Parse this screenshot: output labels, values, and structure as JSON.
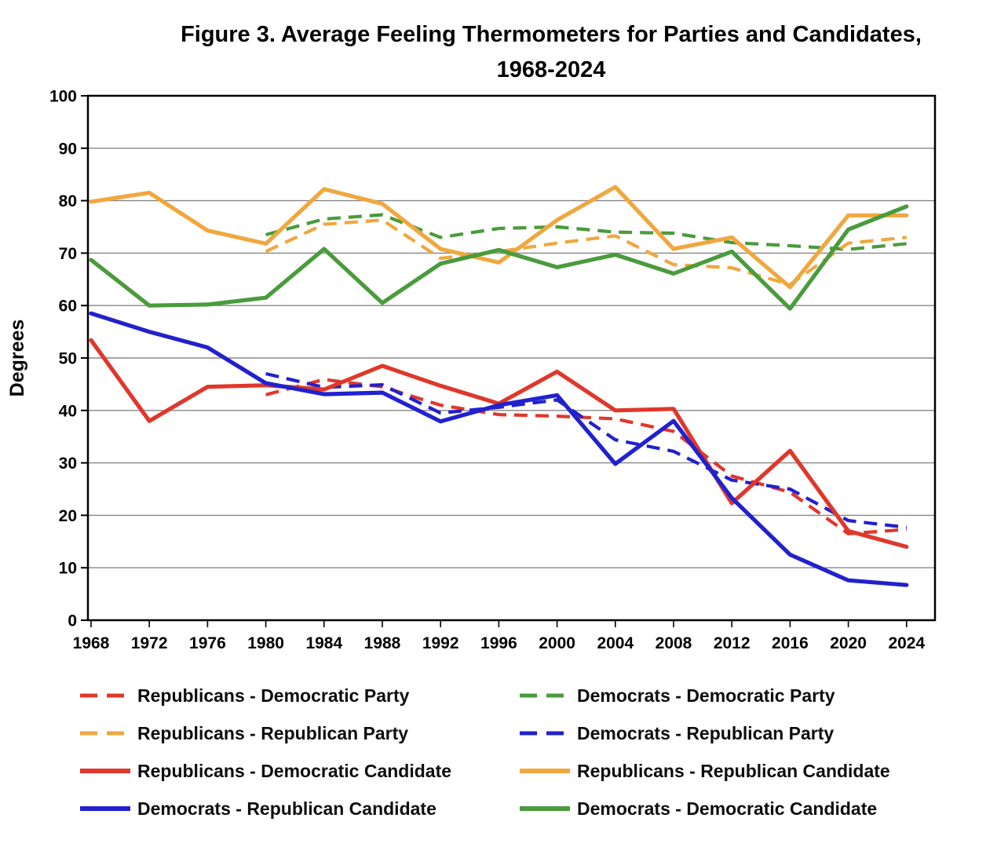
{
  "title": {
    "line1": "Figure 3.  Average Feeling Thermometers for Parties and Candidates,",
    "line2": "1968-2024"
  },
  "chart_data": {
    "type": "line",
    "title": "Figure 3. Average Feeling Thermometers for Parties and Candidates, 1968-2024",
    "xlabel": "",
    "ylabel": "Degrees",
    "ylim": [
      0,
      100
    ],
    "yticks": [
      0,
      10,
      20,
      30,
      40,
      50,
      60,
      70,
      80,
      90,
      100
    ],
    "grid": true,
    "legend_position": "bottom-two-columns",
    "categories": [
      "1968",
      "1972",
      "1976",
      "1980",
      "1984",
      "1988",
      "1992",
      "1996",
      "2000",
      "2004",
      "2008",
      "2012",
      "2016",
      "2020",
      "2024"
    ],
    "series": [
      {
        "name": "Republicans - Democratic Party",
        "color": "#E0372B",
        "dashed": true,
        "values": [
          null,
          null,
          null,
          43,
          45.9,
          44.5,
          41,
          39.2,
          38.9,
          38.4,
          36,
          27.5,
          24.4,
          16.5,
          17.3
        ]
      },
      {
        "name": "Democrats - Democratic Party",
        "color": "#4A9B3C",
        "dashed": true,
        "values": [
          null,
          null,
          null,
          73.5,
          76.5,
          77.3,
          73,
          74.7,
          75,
          74,
          73.8,
          72,
          71.4,
          70.7,
          71.8
        ]
      },
      {
        "name": "Republicans - Republican Party",
        "color": "#F0A73E",
        "dashed": true,
        "values": [
          null,
          null,
          null,
          70.3,
          75.5,
          76.3,
          69,
          70.3,
          71.9,
          73.3,
          67.8,
          67.2,
          64,
          71.9,
          73
        ]
      },
      {
        "name": "Democrats - Republican Party",
        "color": "#2121CE",
        "dashed": true,
        "values": [
          null,
          null,
          null,
          47,
          44.4,
          44.9,
          39.5,
          40.6,
          42,
          34.4,
          32.2,
          26.7,
          25,
          19,
          17.7
        ]
      },
      {
        "name": "Republicans - Democratic Candidate",
        "color": "#E0372B",
        "dashed": false,
        "values": [
          53.4,
          38,
          44.5,
          44.8,
          44,
          48.5,
          44.7,
          41.3,
          47.4,
          40,
          40.3,
          22.3,
          32.3,
          17,
          14
        ]
      },
      {
        "name": "Republicans - Republican Candidate",
        "color": "#F0A73E",
        "dashed": false,
        "values": [
          79.8,
          81.5,
          74.3,
          71.8,
          82.2,
          79.4,
          70.8,
          68.2,
          76.3,
          82.6,
          70.8,
          73,
          63.5,
          77.2,
          77.2
        ]
      },
      {
        "name": "Democrats - Republican Candidate",
        "color": "#2121CE",
        "dashed": false,
        "values": [
          58.5,
          55,
          52,
          45.2,
          43.1,
          43.4,
          37.9,
          41,
          42.9,
          29.8,
          38,
          23.3,
          12.5,
          7.6,
          6.7
        ]
      },
      {
        "name": "Democrats - Democratic Candidate",
        "color": "#4A9B3C",
        "dashed": false,
        "values": [
          68.7,
          60,
          60.2,
          61.5,
          70.8,
          60.5,
          68,
          70.6,
          67.3,
          69.7,
          66.1,
          70.3,
          59.4,
          74.5,
          78.9
        ]
      }
    ]
  }
}
